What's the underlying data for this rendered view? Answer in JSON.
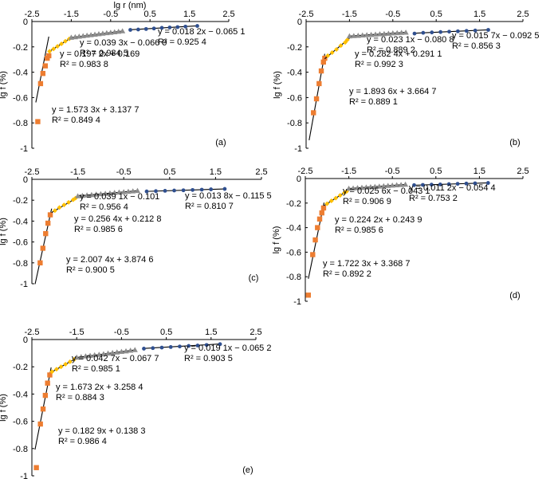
{
  "figure": {
    "x_axis_title": "lg r (nm)",
    "y_axis_title": "lg f (%)"
  },
  "chart_data": [
    {
      "type": "scatter",
      "panel_label": "(a)",
      "xlim": [
        -2.5,
        2.5
      ],
      "ylim": [
        -1,
        0
      ],
      "x_ticks": [
        "-2.5",
        "-1.5",
        "-0.5",
        "0.5",
        "1.5",
        "2.5"
      ],
      "y_ticks": [
        "0",
        "-0.2",
        "-0.4",
        "-0.6",
        "-0.8",
        "-1"
      ],
      "series": [
        {
          "marker": "square",
          "color": "#ED7D31",
          "x": [
            -2.35,
            -2.28,
            -2.22,
            -2.16,
            -2.11,
            -2.07
          ],
          "y": [
            -0.79,
            -0.49,
            -0.41,
            -0.35,
            -0.29,
            -0.27
          ],
          "fit": {
            "equation": "y = 1.573 3x + 3.137 7",
            "r2": "R² = 0.849 4",
            "slope": 1.5733,
            "intercept": 3.1377,
            "x_range": [
              -2.4,
              -2.07
            ]
          }
        },
        {
          "marker": "diamond",
          "color": "#FFC000",
          "x": [
            -2.05,
            -1.95,
            -1.85,
            -1.75,
            -1.65,
            -1.55
          ],
          "y": [
            -0.235,
            -0.216,
            -0.196,
            -0.176,
            -0.156,
            -0.137
          ],
          "fit": {
            "equation": "y = 0.197 2x + 0.169",
            "r2": "R² = 0.983 8",
            "slope": 0.1972,
            "intercept": 0.169,
            "x_range": [
              -2.07,
              -1.5
            ]
          }
        },
        {
          "marker": "triangle",
          "color": "#8C8C8C",
          "x": [
            -1.5,
            -1.4,
            -1.3,
            -1.2,
            -1.1,
            -1.0,
            -0.9,
            -0.8,
            -0.7,
            -0.6,
            -0.5,
            -0.4,
            -0.3,
            -0.2
          ],
          "y": [
            -0.126,
            -0.122,
            -0.118,
            -0.114,
            -0.11,
            -0.106,
            -0.102,
            -0.098,
            -0.094,
            -0.09,
            -0.087,
            -0.083,
            -0.079,
            -0.075
          ],
          "fit": {
            "equation": "y = 0.039 3x − 0.066 9",
            "r2": "R² = 0.984 5",
            "slope": 0.0393,
            "intercept": -0.0669,
            "x_range": [
              -1.5,
              -0.2
            ]
          }
        },
        {
          "marker": "circle",
          "color": "#2F4F8F",
          "x": [
            0.0,
            0.2,
            0.4,
            0.6,
            0.8,
            1.0,
            1.2,
            1.4,
            1.7
          ],
          "y": [
            -0.066,
            -0.063,
            -0.059,
            -0.055,
            -0.05,
            -0.047,
            -0.044,
            -0.04,
            -0.035
          ],
          "fit": {
            "equation": "y = 0.018 2x − 0.065 1",
            "r2": "R² = 0.925 4",
            "slope": 0.0182,
            "intercept": -0.0651,
            "x_range": [
              0.0,
              1.7
            ]
          }
        }
      ]
    },
    {
      "type": "scatter",
      "panel_label": "(b)",
      "xlim": [
        -2.5,
        2.5
      ],
      "ylim": [
        -1,
        0
      ],
      "x_ticks": [
        "-2.5",
        "-1.5",
        "-0.5",
        "0.5",
        "1.5",
        "2.5"
      ],
      "y_ticks": [
        "0",
        "-0.2",
        "-0.4",
        "-0.6",
        "-0.8",
        "-1"
      ],
      "series": [
        {
          "marker": "square",
          "color": "#ED7D31",
          "x": [
            -2.33,
            -2.26,
            -2.2,
            -2.15,
            -2.1,
            -2.07
          ],
          "y": [
            -0.72,
            -0.61,
            -0.49,
            -0.39,
            -0.32,
            -0.29
          ],
          "fit": {
            "equation": "y = 1.893 6x + 3.664 7",
            "r2": "R² = 0.889 1",
            "slope": 1.8936,
            "intercept": 3.6647,
            "x_range": [
              -2.43,
              -2.07
            ]
          }
        },
        {
          "marker": "diamond",
          "color": "#FFC000",
          "x": [
            -2.0,
            -1.9,
            -1.8,
            -1.7,
            -1.6,
            -1.55
          ],
          "y": [
            -0.27,
            -0.245,
            -0.22,
            -0.19,
            -0.165,
            -0.145
          ],
          "fit": {
            "equation": "y = 0.282 4x + 0.291 1",
            "r2": "R² = 0.992 3",
            "slope": 0.2824,
            "intercept": 0.2911,
            "x_range": [
              -2.07,
              -1.5
            ]
          }
        },
        {
          "marker": "triangle",
          "color": "#8C8C8C",
          "x": [
            -1.5,
            -1.4,
            -1.3,
            -1.2,
            -1.1,
            -1.0,
            -0.9,
            -0.8,
            -0.7,
            -0.6,
            -0.5,
            -0.4,
            -0.3,
            -0.2
          ],
          "y": [
            -0.115,
            -0.113,
            -0.111,
            -0.108,
            -0.106,
            -0.104,
            -0.101,
            -0.099,
            -0.097,
            -0.095,
            -0.092,
            -0.09,
            -0.088,
            -0.086
          ],
          "fit": {
            "equation": "y = 0.023 1x − 0.080 8",
            "r2": "R² = 0.889 2",
            "slope": 0.0231,
            "intercept": -0.0808,
            "x_range": [
              -1.5,
              -0.2
            ]
          }
        },
        {
          "marker": "circle",
          "color": "#2F4F8F",
          "x": [
            0.0,
            0.2,
            0.4,
            0.6,
            0.8,
            1.0,
            1.2,
            1.4,
            1.7
          ],
          "y": [
            -0.095,
            -0.089,
            -0.086,
            -0.083,
            -0.08,
            -0.077,
            -0.074,
            -0.071,
            -0.066
          ],
          "fit": {
            "equation": "y = 0.015 7x − 0.092 5",
            "r2": "R² = 0.856 3",
            "slope": 0.0157,
            "intercept": -0.0925,
            "x_range": [
              0.0,
              1.7
            ]
          }
        }
      ]
    },
    {
      "type": "scatter",
      "panel_label": "(c)",
      "xlim": [
        -2.5,
        2.5
      ],
      "ylim": [
        -1,
        0
      ],
      "x_ticks": [
        "-2.5",
        "-1.5",
        "-0.5",
        "0.5",
        "1.5",
        "2.5"
      ],
      "y_ticks": [
        "0",
        "-0.2",
        "-0.4",
        "-0.6",
        "-0.8",
        "-1"
      ],
      "series": [
        {
          "marker": "square",
          "color": "#ED7D31",
          "x": [
            -2.32,
            -2.26,
            -2.2,
            -2.15,
            -2.1
          ],
          "y": [
            -0.8,
            -0.66,
            -0.52,
            -0.42,
            -0.34
          ],
          "fit": {
            "equation": "y = 2.007 4x + 3.874 6",
            "r2": "R² = 0.900 5",
            "slope": 2.0074,
            "intercept": 3.8746,
            "x_range": [
              -2.43,
              -2.07
            ]
          }
        },
        {
          "marker": "diamond",
          "color": "#FFC000",
          "x": [
            -2.0,
            -1.9,
            -1.8,
            -1.7,
            -1.6,
            -1.55
          ],
          "y": [
            -0.3,
            -0.27,
            -0.245,
            -0.22,
            -0.196,
            -0.18
          ],
          "fit": {
            "equation": "y = 0.256 4x + 0.212 8",
            "r2": "R² = 0.985 6",
            "slope": 0.2564,
            "intercept": 0.2128,
            "x_range": [
              -2.07,
              -1.5
            ]
          }
        },
        {
          "marker": "triangle",
          "color": "#8C8C8C",
          "x": [
            -1.5,
            -1.4,
            -1.3,
            -1.2,
            -1.1,
            -1.0,
            -0.9,
            -0.8,
            -0.7,
            -0.6,
            -0.5,
            -0.4,
            -0.3,
            -0.2
          ],
          "y": [
            -0.16,
            -0.156,
            -0.152,
            -0.148,
            -0.144,
            -0.14,
            -0.136,
            -0.132,
            -0.128,
            -0.124,
            -0.121,
            -0.117,
            -0.113,
            -0.109
          ],
          "fit": {
            "equation": "y = 0.039 1x − 0.101",
            "r2": "R² = 0.956 4",
            "slope": 0.0391,
            "intercept": -0.101,
            "x_range": [
              -1.5,
              -0.2
            ]
          }
        },
        {
          "marker": "circle",
          "color": "#2F4F8F",
          "x": [
            0.0,
            0.2,
            0.4,
            0.6,
            0.8,
            1.0,
            1.2,
            1.4,
            1.7
          ],
          "y": [
            -0.116,
            -0.113,
            -0.11,
            -0.107,
            -0.105,
            -0.102,
            -0.099,
            -0.096,
            -0.092
          ],
          "fit": {
            "equation": "y = 0.013 8x − 0.115 5",
            "r2": "R² = 0.810 7",
            "slope": 0.0138,
            "intercept": -0.1155,
            "x_range": [
              0.0,
              1.7
            ]
          }
        }
      ]
    },
    {
      "type": "scatter",
      "panel_label": "(d)",
      "xlim": [
        -2.5,
        2.5
      ],
      "ylim": [
        -1,
        0
      ],
      "x_ticks": [
        "-2.5",
        "-1.5",
        "-0.5",
        "0.5",
        "1.5",
        "2.5"
      ],
      "y_ticks": [
        "0",
        "-0.2",
        "-0.4",
        "-0.6",
        "-0.8",
        "-1"
      ],
      "series": [
        {
          "marker": "square",
          "color": "#ED7D31",
          "x": [
            -2.43,
            -2.33,
            -2.27,
            -2.22,
            -2.17,
            -2.12,
            -2.08
          ],
          "y": [
            -0.95,
            -0.62,
            -0.5,
            -0.4,
            -0.33,
            -0.28,
            -0.24
          ],
          "fit": {
            "equation": "y = 1.722 3x + 3.368 7",
            "r2": "R² = 0.892 2",
            "slope": 1.7223,
            "intercept": 3.3687,
            "x_range": [
              -2.43,
              -2.07
            ]
          }
        },
        {
          "marker": "diamond",
          "color": "#FFC000",
          "x": [
            -2.0,
            -1.9,
            -1.8,
            -1.7,
            -1.6,
            -1.55
          ],
          "y": [
            -0.205,
            -0.182,
            -0.16,
            -0.137,
            -0.115,
            -0.105
          ],
          "fit": {
            "equation": "y = 0.224 2x + 0.243 9",
            "r2": "R² = 0.985 6",
            "slope": 0.2242,
            "intercept": 0.2439,
            "x_range": [
              -2.07,
              -1.5
            ]
          }
        },
        {
          "marker": "triangle",
          "color": "#8C8C8C",
          "x": [
            -1.5,
            -1.4,
            -1.3,
            -1.2,
            -1.1,
            -1.0,
            -0.9,
            -0.8,
            -0.7,
            -0.6,
            -0.5,
            -0.4,
            -0.3,
            -0.2
          ],
          "y": [
            -0.081,
            -0.079,
            -0.076,
            -0.074,
            -0.071,
            -0.069,
            -0.066,
            -0.064,
            -0.061,
            -0.058,
            -0.056,
            -0.053,
            -0.051,
            -0.048
          ],
          "fit": {
            "equation": "y = 0.025 6x − 0.043 1",
            "r2": "R² = 0.906 9",
            "slope": 0.0256,
            "intercept": -0.0431,
            "x_range": [
              -1.5,
              -0.2
            ]
          }
        },
        {
          "marker": "circle",
          "color": "#2F4F8F",
          "x": [
            0.0,
            0.2,
            0.4,
            0.6,
            0.8,
            1.0,
            1.2,
            1.4,
            1.7
          ],
          "y": [
            -0.054,
            -0.052,
            -0.05,
            -0.048,
            -0.046,
            -0.043,
            -0.041,
            -0.039,
            -0.036
          ],
          "fit": {
            "equation": "y = 0.011 2x − 0.054 4",
            "r2": "R² = 0.753 2",
            "slope": 0.0112,
            "intercept": -0.0544,
            "x_range": [
              0.0,
              1.7
            ]
          }
        }
      ]
    },
    {
      "type": "scatter",
      "panel_label": "(e)",
      "xlim": [
        -2.5,
        2.5
      ],
      "ylim": [
        -1,
        0
      ],
      "x_ticks": [
        "-2.5",
        "-1.5",
        "-0.5",
        "0.5",
        "1.5",
        "2.5"
      ],
      "y_ticks": [
        "0",
        "-0.2",
        "-0.4",
        "-0.6",
        "-0.8",
        "-1"
      ],
      "series": [
        {
          "marker": "square",
          "color": "#ED7D31",
          "x": [
            -2.4,
            -2.31,
            -2.25,
            -2.2,
            -2.15,
            -2.1
          ],
          "y": [
            -0.94,
            -0.62,
            -0.51,
            -0.41,
            -0.32,
            -0.26
          ],
          "fit": {
            "equation": "y = 1.673 2x + 3.258 4",
            "r2": "R² = 0.884 3",
            "slope": 1.6732,
            "intercept": 3.2584,
            "x_range": [
              -2.43,
              -2.07
            ]
          }
        },
        {
          "marker": "diamond",
          "color": "#FFC000",
          "x": [
            -2.05,
            -1.95,
            -1.85,
            -1.75,
            -1.65,
            -1.55
          ],
          "y": [
            -0.236,
            -0.218,
            -0.2,
            -0.181,
            -0.163,
            -0.145
          ],
          "fit": {
            "equation": "y = 0.182 9x + 0.138 3",
            "r2": "R² = 0.986 4",
            "slope": 0.1829,
            "intercept": 0.1383,
            "x_range": [
              -2.07,
              -1.5
            ]
          }
        },
        {
          "marker": "triangle",
          "color": "#8C8C8C",
          "x": [
            -1.5,
            -1.4,
            -1.3,
            -1.2,
            -1.1,
            -1.0,
            -0.9,
            -0.8,
            -0.7,
            -0.6,
            -0.5,
            -0.4,
            -0.3,
            -0.2
          ],
          "y": [
            -0.131,
            -0.127,
            -0.122,
            -0.118,
            -0.114,
            -0.11,
            -0.106,
            -0.101,
            -0.097,
            -0.093,
            -0.089,
            -0.085,
            -0.08,
            -0.076
          ],
          "fit": {
            "equation": "y = 0.042 7x − 0.067 7",
            "r2": "R² = 0.985 1",
            "slope": 0.0427,
            "intercept": -0.0677,
            "x_range": [
              -1.5,
              -0.2
            ]
          }
        },
        {
          "marker": "circle",
          "color": "#2F4F8F",
          "x": [
            0.0,
            0.2,
            0.4,
            0.6,
            0.8,
            1.0,
            1.2,
            1.4,
            1.7
          ],
          "y": [
            -0.067,
            -0.063,
            -0.059,
            -0.055,
            -0.051,
            -0.047,
            -0.044,
            -0.04,
            -0.034
          ],
          "fit": {
            "equation": "y = 0.019 1x − 0.065 2",
            "r2": "R² = 0.903 5",
            "slope": 0.0191,
            "intercept": -0.0652,
            "x_range": [
              0.0,
              1.7
            ]
          }
        }
      ]
    }
  ]
}
